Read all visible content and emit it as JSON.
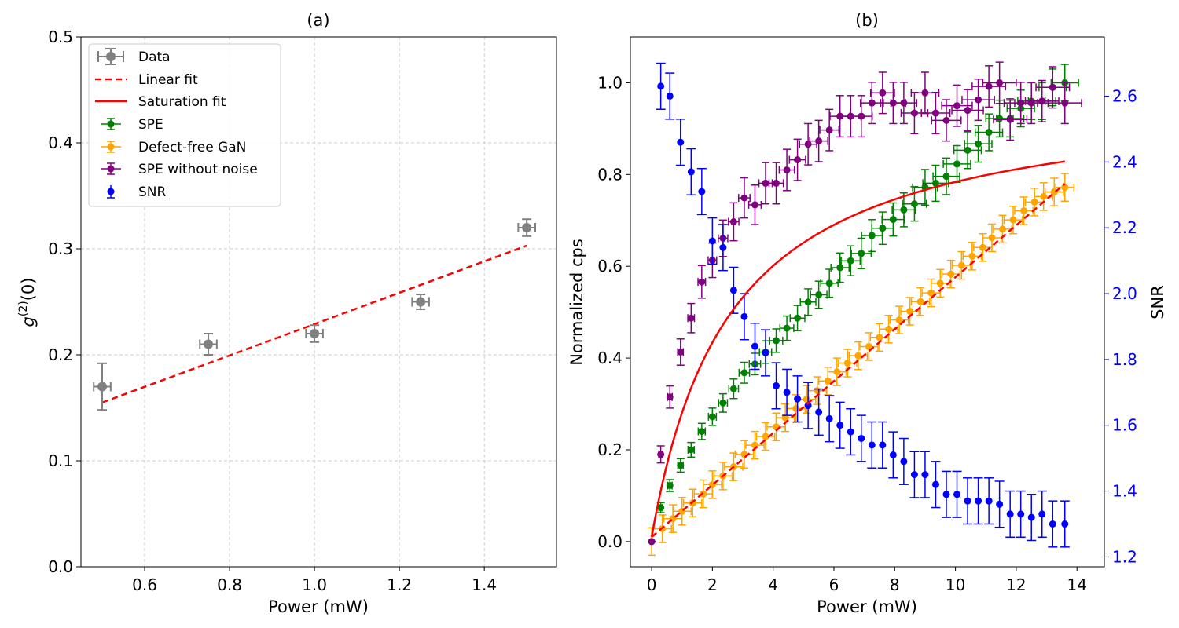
{
  "colors": {
    "data": "#808080",
    "fit": "#ff0000",
    "spe": "#008000",
    "defect_free": "#ffa500",
    "spe_no_noise": "#800080",
    "snr": "#0000ff",
    "grid": "#cccccc"
  },
  "chart_data": [
    {
      "type": "scatter",
      "title": "(a)",
      "xlabel": "Power (mW)",
      "ylabel_base": "g",
      "ylabel_sup": "(2)",
      "ylabel_tail": "(0)",
      "xlim": [
        0.45,
        1.57
      ],
      "ylim": [
        0,
        0.5
      ],
      "xticks": [
        0.6,
        0.8,
        1.0,
        1.2,
        1.4
      ],
      "xtick_labels": [
        "0.6",
        "0.8",
        "1.0",
        "1.2",
        "1.4"
      ],
      "yticks": [
        0.0,
        0.1,
        0.2,
        0.3,
        0.4,
        0.5
      ],
      "ytick_labels": [
        "0.0",
        "0.1",
        "0.2",
        "0.3",
        "0.4",
        "0.5"
      ],
      "grid": true,
      "legend_position": "top-left",
      "legend": [
        "Data",
        "Linear fit",
        "Saturation fit",
        "SPE",
        "Defect-free GaN",
        "SPE without noise",
        "SNR"
      ],
      "series": [
        {
          "name": "Data",
          "x": [
            0.5,
            0.75,
            1.0,
            1.25,
            1.5
          ],
          "y": [
            0.17,
            0.21,
            0.22,
            0.25,
            0.32
          ],
          "yerr": [
            0.022,
            0.01,
            0.008,
            0.007,
            0.008
          ],
          "xerr": [
            0.02,
            0.02,
            0.02,
            0.02,
            0.02
          ]
        },
        {
          "name": "Linear fit",
          "x": [
            0.5,
            1.5
          ],
          "y": [
            0.155,
            0.303
          ]
        }
      ]
    },
    {
      "type": "scatter",
      "title": "(b)",
      "xlabel": "Power (mW)",
      "ylabel": "Normalized cps",
      "y2label": "SNR",
      "xlim": [
        -0.7,
        14.9
      ],
      "ylim": [
        -0.055,
        1.1
      ],
      "y2lim": [
        1.17,
        2.78
      ],
      "xticks": [
        0,
        2,
        4,
        6,
        8,
        10,
        12,
        14
      ],
      "xtick_labels": [
        "0",
        "2",
        "4",
        "6",
        "8",
        "10",
        "12",
        "14"
      ],
      "yticks": [
        0.0,
        0.2,
        0.4,
        0.6,
        0.8,
        1.0
      ],
      "ytick_labels": [
        "0.0",
        "0.2",
        "0.4",
        "0.6",
        "0.8",
        "1.0"
      ],
      "y2ticks": [
        1.2,
        1.4,
        1.6,
        1.8,
        2.0,
        2.2,
        2.4,
        2.6
      ],
      "y2tick_labels": [
        "1.2",
        "1.4",
        "1.6",
        "1.8",
        "2.0",
        "2.2",
        "2.4",
        "2.6"
      ],
      "grid": false,
      "series": [
        {
          "name": "Defect-free GaN",
          "x": [
            0,
            0.35,
            0.7,
            1.0,
            1.35,
            1.7,
            2.0,
            2.35,
            2.7,
            3.05,
            3.4,
            3.75,
            4.1,
            4.4,
            4.75,
            5.1,
            5.45,
            5.8,
            6.1,
            6.45,
            6.8,
            7.15,
            7.5,
            7.8,
            8.15,
            8.5,
            8.85,
            9.2,
            9.5,
            9.85,
            10.2,
            10.55,
            10.9,
            11.2,
            11.55,
            11.9,
            12.25,
            12.6,
            12.9,
            13.25,
            13.6
          ],
          "y": [
            0.0,
            0.028,
            0.05,
            0.066,
            0.084,
            0.104,
            0.124,
            0.143,
            0.163,
            0.19,
            0.21,
            0.229,
            0.25,
            0.27,
            0.29,
            0.31,
            0.329,
            0.35,
            0.37,
            0.389,
            0.405,
            0.425,
            0.445,
            0.463,
            0.483,
            0.502,
            0.523,
            0.542,
            0.563,
            0.583,
            0.602,
            0.622,
            0.641,
            0.662,
            0.681,
            0.701,
            0.721,
            0.74,
            0.752,
            0.762,
            0.772
          ],
          "err": 0.03
        },
        {
          "name": "SPE",
          "x": [
            0,
            0.3,
            0.6,
            0.95,
            1.3,
            1.65,
            2.0,
            2.35,
            2.7,
            3.05,
            3.4,
            3.75,
            4.1,
            4.45,
            4.8,
            5.15,
            5.5,
            5.85,
            6.2,
            6.55,
            6.9,
            7.25,
            7.6,
            7.95,
            8.3,
            8.65,
            9.0,
            9.35,
            9.7,
            10.05,
            10.4,
            10.75,
            11.1,
            11.45,
            11.8,
            12.15,
            12.5,
            12.85,
            13.2,
            13.6
          ],
          "y": [
            0.0,
            0.074,
            0.122,
            0.166,
            0.2,
            0.24,
            0.272,
            0.302,
            0.333,
            0.368,
            0.387,
            0.413,
            0.438,
            0.465,
            0.487,
            0.522,
            0.538,
            0.563,
            0.597,
            0.612,
            0.628,
            0.667,
            0.683,
            0.702,
            0.723,
            0.736,
            0.772,
            0.781,
            0.796,
            0.823,
            0.853,
            0.867,
            0.892,
            0.922,
            0.922,
            0.944,
            0.96,
            0.96,
            0.99,
            1.0
          ],
          "err": 0.04
        },
        {
          "name": "SPE without noise",
          "x": [
            0,
            0.3,
            0.6,
            0.95,
            1.3,
            1.65,
            2.0,
            2.35,
            2.7,
            3.05,
            3.4,
            3.75,
            4.1,
            4.45,
            4.8,
            5.15,
            5.5,
            5.85,
            6.2,
            6.55,
            6.9,
            7.25,
            7.6,
            7.95,
            8.3,
            8.65,
            9.0,
            9.35,
            9.7,
            10.05,
            10.4,
            10.75,
            11.1,
            11.45,
            11.8,
            12.15,
            12.5,
            12.85,
            13.2,
            13.6
          ],
          "y": [
            0.0,
            0.19,
            0.315,
            0.413,
            0.487,
            0.566,
            0.613,
            0.661,
            0.697,
            0.749,
            0.734,
            0.781,
            0.781,
            0.81,
            0.832,
            0.866,
            0.873,
            0.897,
            0.927,
            0.927,
            0.927,
            0.956,
            0.978,
            0.956,
            0.956,
            0.934,
            0.978,
            0.934,
            0.918,
            0.95,
            0.94,
            0.963,
            0.992,
            1.0,
            0.92,
            0.956,
            0.956,
            0.96,
            0.99,
            0.956
          ],
          "err": 0.045
        },
        {
          "name": "SNR",
          "axis": "right",
          "x": [
            0.3,
            0.6,
            0.95,
            1.3,
            1.65,
            2.0,
            2.35,
            2.7,
            3.05,
            3.4,
            3.75,
            4.1,
            4.45,
            4.8,
            5.15,
            5.5,
            5.85,
            6.2,
            6.55,
            6.9,
            7.25,
            7.6,
            7.95,
            8.3,
            8.65,
            9.0,
            9.35,
            9.7,
            10.05,
            10.4,
            10.75,
            11.1,
            11.45,
            11.8,
            12.15,
            12.5,
            12.85,
            13.2,
            13.6
          ],
          "y": [
            2.63,
            2.6,
            2.46,
            2.37,
            2.31,
            2.16,
            2.14,
            2.01,
            1.93,
            1.84,
            1.82,
            1.72,
            1.7,
            1.68,
            1.66,
            1.64,
            1.62,
            1.6,
            1.58,
            1.56,
            1.54,
            1.54,
            1.51,
            1.49,
            1.45,
            1.45,
            1.42,
            1.39,
            1.39,
            1.37,
            1.37,
            1.37,
            1.36,
            1.33,
            1.33,
            1.32,
            1.33,
            1.3,
            1.3
          ],
          "err": 0.07
        },
        {
          "name": "Saturation fit",
          "model": "a*x/(1+x/b)",
          "a": 0.375,
          "b": 2.6,
          "x_range": [
            0,
            13.6
          ]
        },
        {
          "name": "Linear fit",
          "x": [
            0,
            13.6
          ],
          "y": [
            0.01,
            0.78
          ]
        }
      ]
    }
  ]
}
